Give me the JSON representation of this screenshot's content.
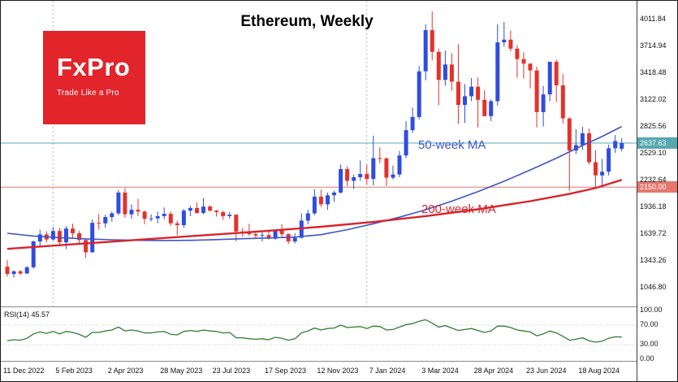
{
  "logo": {
    "name": "FxPro",
    "tagline": "Trade Like a Pro",
    "bg": "#e1252b"
  },
  "chart_data": {
    "type": "candlestick",
    "title": "Ethereum, Weekly",
    "symbol": "Ethereum",
    "timeframe": "Weekly",
    "ylim": [
      822,
      4210
    ],
    "grid": "off",
    "grid_vlines_weeks": [
      7,
      55
    ],
    "y_axis_ticks": [
      "4011.84",
      "3714.94",
      "3418.48",
      "3122.02",
      "2825.56",
      "2529.10",
      "2232.64",
      "1936.18",
      "1639.72",
      "1343.26",
      "1046.80"
    ],
    "x_axis_labels": [
      {
        "week": 0,
        "label": "11 Dec 2022"
      },
      {
        "week": 8,
        "label": "5 Feb 2023"
      },
      {
        "week": 16,
        "label": "2 Apr 2023"
      },
      {
        "week": 24,
        "label": "28 May 2023"
      },
      {
        "week": 32,
        "label": "23 Jul 2023"
      },
      {
        "week": 40,
        "label": "17 Sep 2023"
      },
      {
        "week": 48,
        "label": "12 Nov 2023"
      },
      {
        "week": 56,
        "label": "7 Jan 2024"
      },
      {
        "week": 64,
        "label": "3 Mar 2024"
      },
      {
        "week": 72,
        "label": "28 Apr 2024"
      },
      {
        "week": 80,
        "label": "23 Jun 2024"
      },
      {
        "week": 88,
        "label": "18 Aug 2024"
      }
    ],
    "current_price": 2637.63,
    "current_price_label": "2637.63",
    "support_level": 2150.0,
    "support_level_label": "2150.00",
    "candles": [
      [
        1270,
        1345,
        1160,
        1190
      ],
      [
        1190,
        1230,
        1150,
        1220
      ],
      [
        1220,
        1232,
        1180,
        1196
      ],
      [
        1196,
        1280,
        1190,
        1264
      ],
      [
        1264,
        1560,
        1250,
        1550
      ],
      [
        1550,
        1680,
        1500,
        1628
      ],
      [
        1628,
        1662,
        1540,
        1572
      ],
      [
        1572,
        1710,
        1560,
        1665
      ],
      [
        1665,
        1700,
        1500,
        1540
      ],
      [
        1540,
        1720,
        1465,
        1692
      ],
      [
        1692,
        1745,
        1580,
        1640
      ],
      [
        1640,
        1665,
        1520,
        1565
      ],
      [
        1565,
        1580,
        1368,
        1430
      ],
      [
        1430,
        1790,
        1425,
        1755
      ],
      [
        1755,
        1852,
        1680,
        1750
      ],
      [
        1750,
        1846,
        1700,
        1820
      ],
      [
        1820,
        1880,
        1770,
        1860
      ],
      [
        1860,
        2120,
        1840,
        2090
      ],
      [
        2090,
        2140,
        1810,
        1850
      ],
      [
        1850,
        1960,
        1800,
        1900
      ],
      [
        1900,
        2020,
        1830,
        1880
      ],
      [
        1880,
        1890,
        1740,
        1800
      ],
      [
        1800,
        1850,
        1770,
        1805
      ],
      [
        1805,
        1880,
        1750,
        1830
      ],
      [
        1830,
        1925,
        1795,
        1855
      ],
      [
        1855,
        1880,
        1720,
        1750
      ],
      [
        1750,
        1780,
        1620,
        1730
      ],
      [
        1730,
        1910,
        1700,
        1890
      ],
      [
        1890,
        1945,
        1830,
        1920
      ],
      [
        1920,
        1980,
        1855,
        1865
      ],
      [
        1865,
        2030,
        1850,
        1935
      ],
      [
        1935,
        1950,
        1880,
        1890
      ],
      [
        1890,
        1900,
        1825,
        1875
      ],
      [
        1875,
        1890,
        1790,
        1830
      ],
      [
        1830,
        1875,
        1800,
        1845
      ],
      [
        1845,
        1850,
        1550,
        1660
      ],
      [
        1660,
        1700,
        1600,
        1650
      ],
      [
        1650,
        1745,
        1610,
        1630
      ],
      [
        1630,
        1665,
        1590,
        1615
      ],
      [
        1615,
        1660,
        1550,
        1620
      ],
      [
        1620,
        1680,
        1570,
        1580
      ],
      [
        1580,
        1680,
        1568,
        1670
      ],
      [
        1670,
        1740,
        1600,
        1630
      ],
      [
        1630,
        1640,
        1520,
        1550
      ],
      [
        1550,
        1640,
        1528,
        1590
      ],
      [
        1590,
        1860,
        1580,
        1780
      ],
      [
        1780,
        1900,
        1738,
        1860
      ],
      [
        1860,
        2130,
        1840,
        2045
      ],
      [
        2045,
        2120,
        1930,
        1960
      ],
      [
        1960,
        2090,
        1900,
        2060
      ],
      [
        2060,
        2110,
        1990,
        2090
      ],
      [
        2090,
        2400,
        2080,
        2350
      ],
      [
        2350,
        2380,
        2160,
        2220
      ],
      [
        2220,
        2290,
        2130,
        2260
      ],
      [
        2260,
        2445,
        2220,
        2295
      ],
      [
        2295,
        2400,
        2180,
        2240
      ],
      [
        2240,
        2720,
        2170,
        2470
      ],
      [
        2470,
        2590,
        2415,
        2468
      ],
      [
        2468,
        2480,
        2160,
        2255
      ],
      [
        2255,
        2390,
        2235,
        2290
      ],
      [
        2290,
        2550,
        2260,
        2500
      ],
      [
        2500,
        2880,
        2470,
        2780
      ],
      [
        2780,
        3030,
        2750,
        2925
      ],
      [
        2925,
        3490,
        2900,
        3430
      ],
      [
        3430,
        3950,
        3330,
        3885
      ],
      [
        3885,
        4093,
        3550,
        3645
      ],
      [
        3645,
        3680,
        3055,
        3335
      ],
      [
        3335,
        3660,
        3270,
        3505
      ],
      [
        3505,
        3630,
        3215,
        3315
      ],
      [
        3315,
        3730,
        2850,
        3060
      ],
      [
        3060,
        3290,
        2860,
        3155
      ],
      [
        3155,
        3355,
        3100,
        3260
      ],
      [
        3260,
        3360,
        2810,
        3115
      ],
      [
        3115,
        3220,
        2930,
        2935
      ],
      [
        2935,
        3120,
        2880,
        3100
      ],
      [
        3100,
        3950,
        3050,
        3750
      ],
      [
        3750,
        3975,
        3700,
        3780
      ],
      [
        3780,
        3880,
        3650,
        3680
      ],
      [
        3680,
        3720,
        3360,
        3565
      ],
      [
        3565,
        3640,
        3350,
        3515
      ],
      [
        3515,
        3520,
        3240,
        3440
      ],
      [
        3440,
        3480,
        2810,
        2980
      ],
      [
        2980,
        3270,
        2820,
        3175
      ],
      [
        3175,
        3540,
        3100,
        3535
      ],
      [
        3535,
        3560,
        3090,
        3275
      ],
      [
        3275,
        3400,
        2850,
        2910
      ],
      [
        2910,
        2920,
        2110,
        2555
      ],
      [
        2555,
        2790,
        2515,
        2615
      ],
      [
        2615,
        2820,
        2560,
        2745
      ],
      [
        2745,
        2795,
        2400,
        2425
      ],
      [
        2425,
        2560,
        2150,
        2280
      ],
      [
        2280,
        2460,
        2145,
        2320
      ],
      [
        2320,
        2620,
        2280,
        2580
      ],
      [
        2580,
        2725,
        2530,
        2660
      ],
      [
        2575,
        2690,
        2545,
        2637.63
      ]
    ],
    "ma50": {
      "label": "50-week MA",
      "points": [
        [
          0,
          1640
        ],
        [
          4,
          1610
        ],
        [
          8,
          1592
        ],
        [
          12,
          1578
        ],
        [
          16,
          1568
        ],
        [
          20,
          1562
        ],
        [
          24,
          1560
        ],
        [
          28,
          1562
        ],
        [
          32,
          1570
        ],
        [
          36,
          1580
        ],
        [
          40,
          1588
        ],
        [
          44,
          1598
        ],
        [
          48,
          1625
        ],
        [
          52,
          1680
        ],
        [
          56,
          1745
        ],
        [
          60,
          1818
        ],
        [
          64,
          1900
        ],
        [
          68,
          1995
        ],
        [
          72,
          2100
        ],
        [
          76,
          2215
        ],
        [
          80,
          2340
        ],
        [
          84,
          2470
        ],
        [
          88,
          2610
        ],
        [
          91,
          2710
        ],
        [
          94,
          2820
        ]
      ]
    },
    "ma200": {
      "label": "200-week MA",
      "points": [
        [
          0,
          1468
        ],
        [
          8,
          1508
        ],
        [
          16,
          1548
        ],
        [
          24,
          1588
        ],
        [
          32,
          1628
        ],
        [
          40,
          1668
        ],
        [
          48,
          1712
        ],
        [
          56,
          1765
        ],
        [
          64,
          1830
        ],
        [
          72,
          1905
        ],
        [
          80,
          1995
        ],
        [
          86,
          2075
        ],
        [
          90,
          2140
        ],
        [
          94,
          2230
        ]
      ]
    },
    "rsi": {
      "label": "RSI(14)",
      "value": 45.57,
      "value_label": "45.57",
      "levels": [
        "100.00",
        "70.00",
        "30.00",
        "0.00"
      ],
      "values": [
        38,
        40,
        39,
        43,
        52,
        56,
        53,
        57,
        52,
        57,
        55,
        51,
        45,
        55,
        55,
        58,
        60,
        66,
        58,
        60,
        58,
        54,
        54,
        56,
        57,
        51,
        50,
        57,
        59,
        57,
        60,
        58,
        57,
        54,
        55,
        44,
        44,
        42,
        41,
        42,
        40,
        45,
        43,
        39,
        42,
        54,
        58,
        64,
        60,
        63,
        64,
        70,
        65,
        66,
        67,
        63,
        68,
        67,
        60,
        61,
        66,
        71,
        73,
        78,
        81,
        74,
        66,
        69,
        64,
        59,
        61,
        63,
        59,
        55,
        58,
        68,
        68,
        65,
        60,
        58,
        56,
        48,
        52,
        58,
        54,
        47,
        39,
        41,
        44,
        38,
        35,
        37,
        43,
        46,
        45.57
      ]
    },
    "colors": {
      "up": "#2f4de0",
      "down": "#e4322b",
      "ma50": "#3c56c8",
      "ma200": "#d8242c",
      "current_line": "#56a7b0",
      "support_line": "#e4776e",
      "rsi": "#2f7d32",
      "grid": "#b8b8b8"
    }
  }
}
